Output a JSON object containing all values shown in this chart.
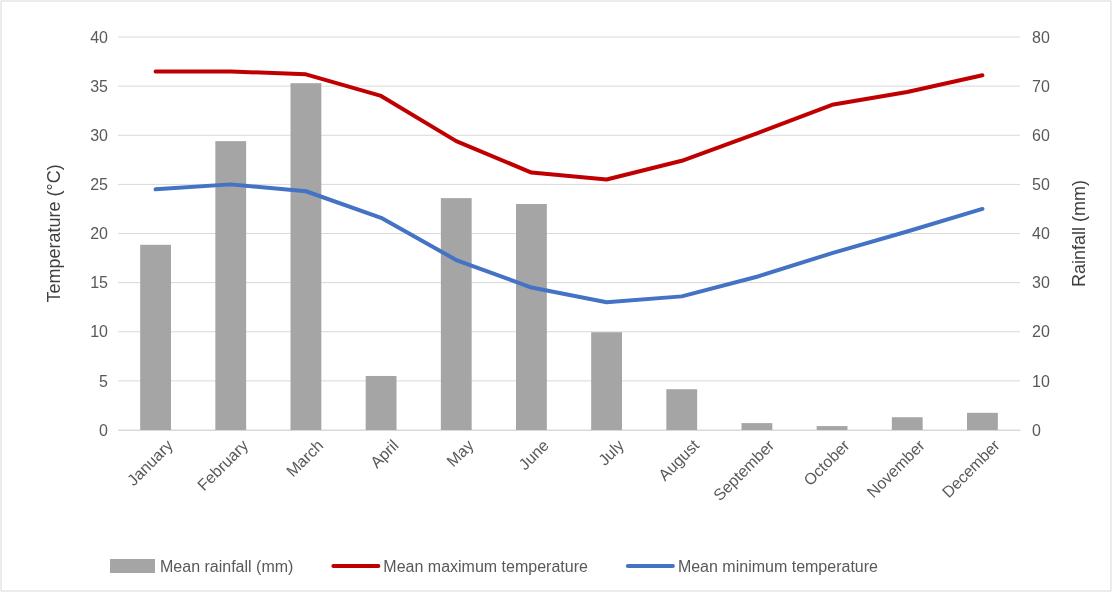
{
  "chart_data": {
    "type": "line",
    "xlabel": null,
    "ylabel": "Temperature (°C)",
    "y2label": "Rainfall (mm)",
    "categories": [
      "January",
      "February",
      "March",
      "April",
      "May",
      "June",
      "July",
      "August",
      "September",
      "October",
      "November",
      "December"
    ],
    "series": [
      {
        "name": "Mean rainfall (mm)",
        "type": "bar",
        "axis": "y2",
        "color": "#a5a5a5",
        "values": [
          37.7,
          58.8,
          70.6,
          11.0,
          47.2,
          46.0,
          19.9,
          8.3,
          1.4,
          0.8,
          2.6,
          3.5
        ]
      },
      {
        "name": "Mean maximum temperature",
        "color": "#c00000",
        "values": [
          36.5,
          36.5,
          36.2,
          34.0,
          29.4,
          26.2,
          25.5,
          27.4,
          30.2,
          33.1,
          34.4,
          36.1
        ]
      },
      {
        "name": "Mean minimum temperature",
        "color": "#4472c4",
        "values": [
          24.5,
          25.0,
          24.3,
          21.6,
          17.3,
          14.5,
          13.0,
          13.6,
          15.6,
          18.0,
          20.2,
          22.5
        ]
      }
    ],
    "ylim": [
      0,
      40
    ],
    "yticks": [
      0,
      5,
      10,
      15,
      20,
      25,
      30,
      35,
      40
    ],
    "y2lim": [
      0,
      80
    ],
    "y2ticks": [
      0,
      10,
      20,
      30,
      40,
      50,
      60,
      70,
      80
    ],
    "grid": "y",
    "legend": "bottom",
    "marker": "none",
    "line_style": "solid"
  }
}
